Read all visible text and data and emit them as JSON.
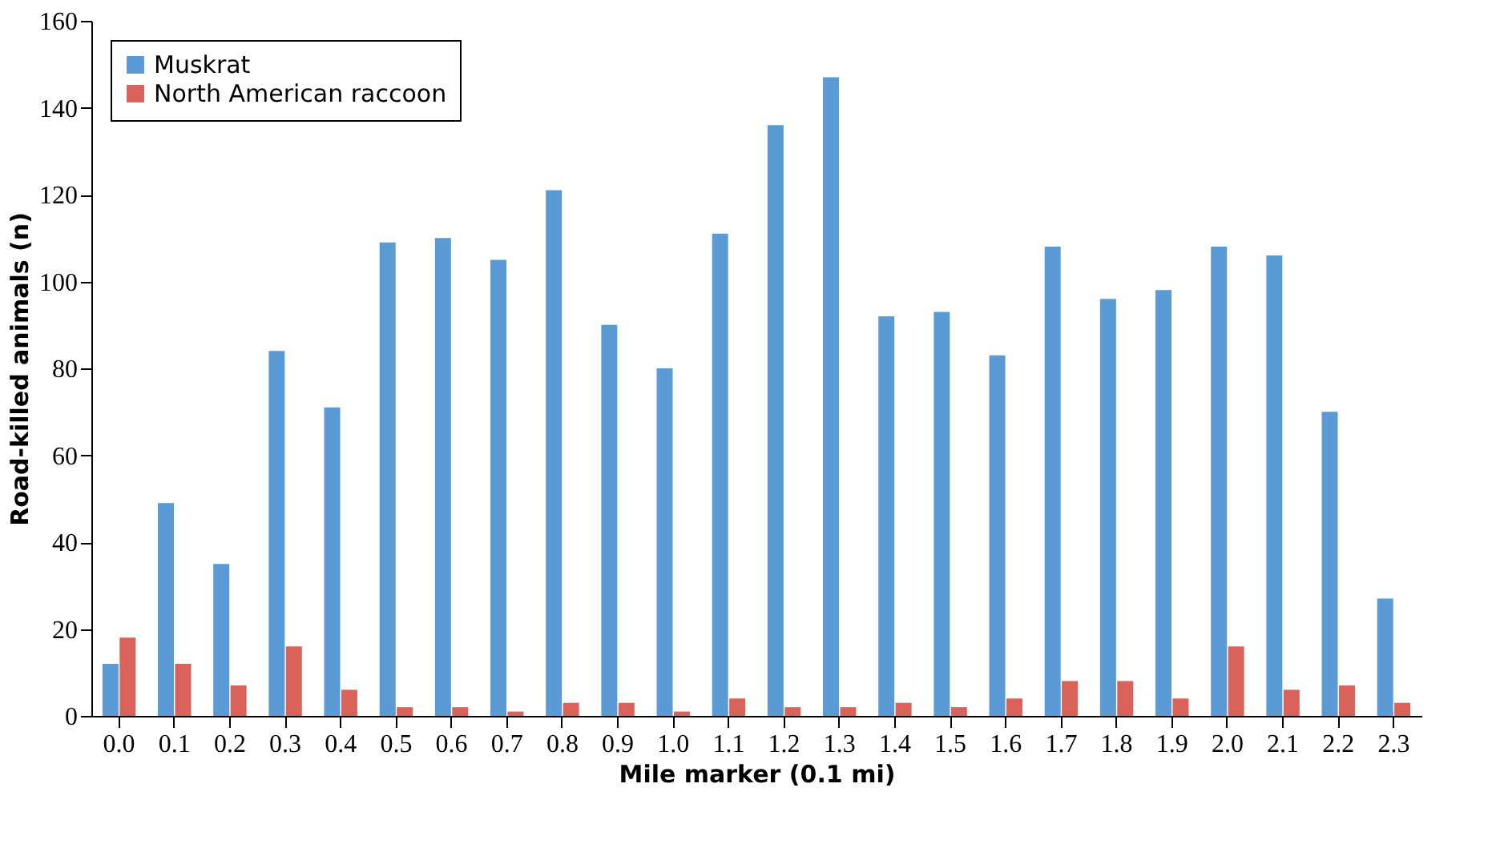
{
  "chart_data": {
    "type": "bar",
    "xlabel": "Mile marker (0.1 mi)",
    "ylabel": "Road-killed animals (n)",
    "categories": [
      "0.0",
      "0.1",
      "0.2",
      "0.3",
      "0.4",
      "0.5",
      "0.6",
      "0.7",
      "0.8",
      "0.9",
      "1.0",
      "1.1",
      "1.2",
      "1.3",
      "1.4",
      "1.5",
      "1.6",
      "1.7",
      "1.8",
      "1.9",
      "2.0",
      "2.1",
      "2.2",
      "2.3"
    ],
    "series": [
      {
        "name": "Muskrat",
        "color": "#5b9bd5",
        "values": [
          12,
          49,
          35,
          84,
          71,
          109,
          110,
          105,
          121,
          90,
          80,
          111,
          136,
          147,
          92,
          93,
          83,
          108,
          96,
          98,
          108,
          106,
          70,
          27
        ]
      },
      {
        "name": "North American raccoon",
        "color": "#d9635b",
        "values": [
          18,
          12,
          7,
          16,
          6,
          2,
          2,
          1,
          3,
          3,
          1,
          4,
          2,
          2,
          3,
          2,
          4,
          8,
          8,
          4,
          16,
          6,
          7,
          3
        ]
      }
    ],
    "ylim": [
      0,
      160
    ],
    "yticks": [
      0,
      20,
      40,
      60,
      80,
      100,
      120,
      140,
      160
    ],
    "grid": false,
    "legend": "top left"
  }
}
